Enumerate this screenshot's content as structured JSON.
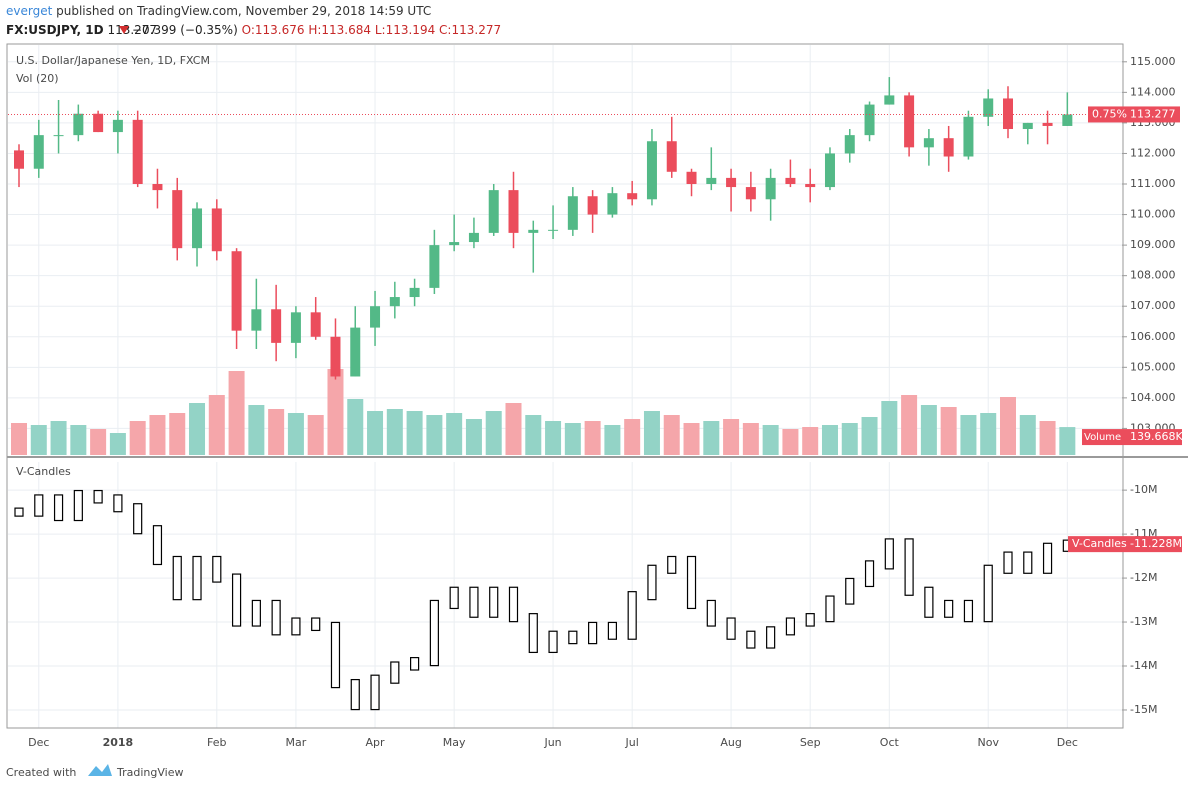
{
  "header": {
    "publisher": "everget",
    "published": "published on TradingView.com, November 29, 2018 14:59 UTC",
    "symbol": "FX:USDJPY, 1D",
    "price": "113.277",
    "change": "−0.399 (−0.35%)",
    "open": "O:113.676",
    "high": "H:113.684",
    "low": "L:113.194",
    "close": "C:113.277"
  },
  "footer": {
    "created": "Created with",
    "brand": "TradingView"
  },
  "chart_data": [
    {
      "type": "candlestick",
      "title": "U.S. Dollar/Japanese Yen, 1D, FXCM",
      "categories": [
        null,
        "Dec",
        null,
        null,
        null,
        "2018",
        null,
        null,
        null,
        null,
        "Feb",
        null,
        null,
        null,
        "Mar",
        null,
        null,
        null,
        "Apr",
        null,
        null,
        null,
        "May",
        null,
        null,
        null,
        null,
        "Jun",
        null,
        null,
        null,
        "Jul",
        null,
        null,
        null,
        null,
        "Aug",
        null,
        null,
        null,
        "Sep",
        null,
        null,
        null,
        "Oct",
        null,
        null,
        null,
        null,
        "Nov",
        null,
        null,
        null,
        "Dec"
      ],
      "open": [
        112.1,
        111.5,
        112.6,
        112.6,
        113.3,
        112.7,
        113.1,
        111.0,
        110.8,
        108.9,
        110.2,
        108.8,
        106.2,
        106.9,
        105.8,
        106.8,
        106.0,
        104.7,
        106.3,
        107.0,
        107.3,
        107.6,
        109.0,
        109.1,
        109.4,
        110.8,
        109.4,
        109.5,
        109.5,
        110.6,
        110.0,
        110.7,
        110.5,
        112.4,
        111.4,
        111.0,
        111.2,
        110.9,
        110.5,
        111.2,
        111.0,
        110.9,
        112.0,
        112.6,
        113.6,
        113.9,
        112.2,
        112.5,
        111.9,
        113.2,
        113.8,
        112.8,
        113.0,
        112.9
      ],
      "high": [
        112.3,
        113.1,
        113.75,
        113.6,
        113.4,
        113.4,
        113.4,
        111.5,
        111.2,
        110.4,
        110.5,
        108.9,
        107.9,
        107.7,
        107.0,
        107.3,
        106.6,
        107.0,
        107.5,
        107.8,
        107.9,
        109.5,
        110.0,
        109.9,
        111.0,
        111.4,
        109.8,
        110.3,
        110.9,
        110.8,
        110.9,
        111.1,
        112.8,
        113.2,
        111.5,
        112.2,
        111.5,
        111.4,
        111.5,
        111.8,
        111.5,
        112.2,
        112.8,
        113.7,
        114.5,
        114.0,
        112.8,
        112.9,
        113.4,
        114.1,
        114.2,
        113.0,
        113.4,
        114.0
      ],
      "low": [
        110.9,
        111.2,
        112.0,
        112.4,
        112.7,
        112.0,
        110.9,
        110.2,
        108.5,
        108.3,
        108.5,
        105.6,
        105.6,
        105.2,
        105.3,
        105.9,
        104.6,
        104.7,
        105.7,
        106.6,
        107.0,
        107.4,
        108.8,
        108.9,
        109.3,
        108.9,
        108.1,
        109.2,
        109.3,
        109.4,
        109.9,
        110.3,
        110.3,
        111.2,
        110.6,
        110.8,
        110.1,
        110.1,
        109.8,
        110.9,
        110.4,
        110.8,
        111.7,
        112.4,
        113.6,
        111.9,
        111.6,
        111.4,
        111.8,
        112.9,
        112.5,
        112.3,
        112.3,
        112.9
      ],
      "close": [
        111.5,
        112.6,
        112.6,
        113.3,
        112.7,
        113.1,
        111.0,
        110.8,
        108.9,
        110.2,
        108.8,
        106.2,
        106.9,
        105.8,
        106.8,
        106.0,
        104.7,
        106.3,
        107.0,
        107.3,
        107.6,
        109.0,
        109.1,
        109.4,
        110.8,
        109.4,
        109.5,
        109.5,
        110.6,
        110.0,
        110.7,
        110.5,
        112.4,
        111.4,
        111.0,
        111.2,
        110.9,
        110.5,
        111.2,
        111.0,
        110.9,
        112.0,
        112.6,
        113.6,
        113.9,
        112.2,
        112.5,
        111.9,
        113.2,
        113.8,
        112.8,
        113.0,
        112.9,
        113.277
      ],
      "up_color": "#53b987",
      "down_color": "#eb4d5c",
      "ylim": [
        102.13,
        115.55
      ],
      "yticks": [
        {
          "value": 103,
          "label": "103.000"
        },
        {
          "value": 104,
          "label": "104.000"
        },
        {
          "value": 105,
          "label": "105.000"
        },
        {
          "value": 106,
          "label": "106.000"
        },
        {
          "value": 107,
          "label": "107.000"
        },
        {
          "value": 108,
          "label": "108.000"
        },
        {
          "value": 109,
          "label": "109.000"
        },
        {
          "value": 110,
          "label": "110.000"
        },
        {
          "value": 111,
          "label": "111.000"
        },
        {
          "value": 112,
          "label": "112.000"
        },
        {
          "value": 113,
          "label": "113.000"
        },
        {
          "value": 114,
          "label": "114.000"
        },
        {
          "value": 115,
          "label": "115.000"
        }
      ],
      "grid": true,
      "last_price": 113.277,
      "last_change_label": "0.75%",
      "volume": {
        "name": "Vol (20)",
        "label": "Volume",
        "last_label": "139.668K",
        "ylim": [
          0,
          600
        ],
        "up_color": "#93d3c6",
        "down_color": "#f5a6aa",
        "values": [
          160,
          150,
          170,
          150,
          130,
          110,
          170,
          200,
          210,
          260,
          300,
          420,
          250,
          230,
          210,
          200,
          430,
          280,
          220,
          230,
          220,
          200,
          210,
          180,
          220,
          260,
          200,
          170,
          160,
          170,
          150,
          180,
          220,
          200,
          160,
          170,
          180,
          160,
          150,
          130,
          140,
          150,
          160,
          190,
          270,
          300,
          250,
          240,
          200,
          210,
          290,
          200,
          170,
          139.668
        ]
      }
    },
    {
      "type": "vcandles",
      "title": "V-Candles",
      "color": "#000000",
      "label_color": "#eb4d5c",
      "values": [
        -10.5,
        -10.2,
        -10.6,
        -10.1,
        -10.2,
        -10.4,
        -10.9,
        -11.6,
        -12.4,
        -11.6,
        -12.0,
        -13.0,
        -12.6,
        -13.2,
        -13.0,
        -13.1,
        -14.4,
        -14.9,
        -14.3,
        -14.0,
        -13.9,
        -12.6,
        -12.3,
        -12.8,
        -12.3,
        -12.9,
        -13.6,
        -13.3,
        -13.4,
        -13.1,
        -13.3,
        -12.4,
        -11.8,
        -11.6,
        -12.6,
        -13.0,
        -13.3,
        -13.5,
        -13.2,
        -13.0,
        -12.9,
        -12.5,
        -12.1,
        -11.7,
        -11.2,
        -12.3,
        -12.8,
        -12.6,
        -12.9,
        -11.8,
        -11.5,
        -11.8,
        -11.3,
        -11.228
      ],
      "ylim": [
        -15.41,
        -9.36
      ],
      "yticks": [
        {
          "value": -10,
          "label": "-10M"
        },
        {
          "value": -11,
          "label": "-11M"
        },
        {
          "value": -12,
          "label": "-12M"
        },
        {
          "value": -13,
          "label": "-13M"
        },
        {
          "value": -14,
          "label": "-14M"
        },
        {
          "value": -15,
          "label": "-15M"
        }
      ],
      "last_label": "-11.228M"
    }
  ]
}
